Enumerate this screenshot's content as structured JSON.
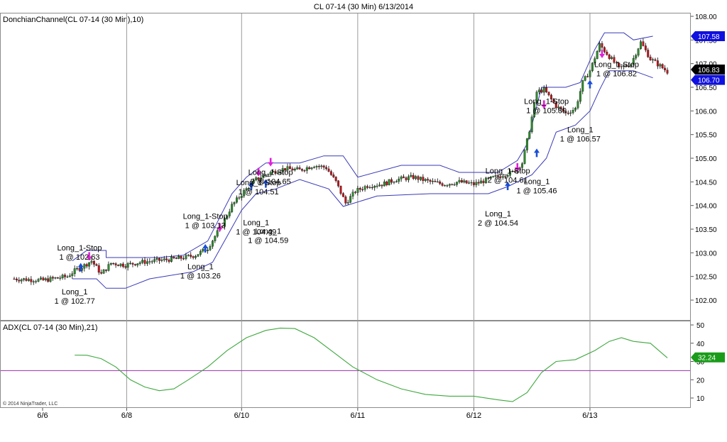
{
  "window": {
    "title": "CL 07-14 (30 Min)  6/13/2014"
  },
  "copyright": "© 2014 NinjaTrader, LLC",
  "colors": {
    "channel": "#3a3ab8",
    "bull_candle": "#2e8b2e",
    "bear_candle": "#c0141c",
    "adx_line": "#3fa83f",
    "adx_threshold": "#9a2fb0",
    "buy_arrow": "#1a4fd6",
    "sell_arrow": "#e020d8",
    "session_line": "#9a9a9a",
    "upper_marker": "#1010e0",
    "price_marker": "#000000",
    "adx_marker": "#1a9c1a"
  },
  "chart_data": [
    {
      "type": "candlestick",
      "title": "DonchianChannel(CL 07-14 (30 Min),10)",
      "ylim": [
        101.7,
        108.05
      ],
      "y_ticks": [
        "102.00",
        "102.50",
        "103.00",
        "103.50",
        "104.00",
        "104.50",
        "105.00",
        "105.50",
        "106.00",
        "106.50",
        "107.00",
        "107.50",
        "108.00"
      ],
      "x_ticks": [
        "6/6",
        "6/8",
        "6/10",
        "6/11",
        "6/12",
        "6/13"
      ],
      "price_path": [
        {
          "x": 0,
          "y": 102.45
        },
        {
          "x": 12,
          "y": 102.42
        },
        {
          "x": 22,
          "y": 102.5
        },
        {
          "x": 25,
          "y": 102.62
        },
        {
          "x": 28,
          "y": 102.7
        },
        {
          "x": 32,
          "y": 102.83
        },
        {
          "x": 36,
          "y": 102.55
        },
        {
          "x": 40,
          "y": 102.78
        },
        {
          "x": 46,
          "y": 102.74
        },
        {
          "x": 52,
          "y": 102.8
        },
        {
          "x": 60,
          "y": 102.84
        },
        {
          "x": 68,
          "y": 102.88
        },
        {
          "x": 75,
          "y": 102.95
        },
        {
          "x": 80,
          "y": 103.1
        },
        {
          "x": 86,
          "y": 103.6
        },
        {
          "x": 90,
          "y": 104.0
        },
        {
          "x": 95,
          "y": 104.3
        },
        {
          "x": 100,
          "y": 104.55
        },
        {
          "x": 106,
          "y": 104.7
        },
        {
          "x": 112,
          "y": 104.78
        },
        {
          "x": 118,
          "y": 104.75
        },
        {
          "x": 124,
          "y": 104.85
        },
        {
          "x": 129,
          "y": 104.8
        },
        {
          "x": 133,
          "y": 104.5
        },
        {
          "x": 137,
          "y": 104.05
        },
        {
          "x": 141,
          "y": 104.3
        },
        {
          "x": 146,
          "y": 104.42
        },
        {
          "x": 152,
          "y": 104.45
        },
        {
          "x": 158,
          "y": 104.55
        },
        {
          "x": 165,
          "y": 104.6
        },
        {
          "x": 172,
          "y": 104.5
        },
        {
          "x": 178,
          "y": 104.45
        },
        {
          "x": 184,
          "y": 104.5
        },
        {
          "x": 190,
          "y": 104.45
        },
        {
          "x": 196,
          "y": 104.55
        },
        {
          "x": 202,
          "y": 104.65
        },
        {
          "x": 206,
          "y": 104.7
        },
        {
          "x": 210,
          "y": 104.9
        },
        {
          "x": 213,
          "y": 105.6
        },
        {
          "x": 216,
          "y": 106.4
        },
        {
          "x": 219,
          "y": 106.45
        },
        {
          "x": 224,
          "y": 106.1
        },
        {
          "x": 228,
          "y": 105.95
        },
        {
          "x": 232,
          "y": 106.05
        },
        {
          "x": 235,
          "y": 106.6
        },
        {
          "x": 238,
          "y": 106.85
        },
        {
          "x": 242,
          "y": 107.4
        },
        {
          "x": 246,
          "y": 107.15
        },
        {
          "x": 250,
          "y": 106.9
        },
        {
          "x": 255,
          "y": 107.0
        },
        {
          "x": 259,
          "y": 107.45
        },
        {
          "x": 263,
          "y": 107.1
        },
        {
          "x": 267,
          "y": 106.95
        },
        {
          "x": 270,
          "y": 106.83
        }
      ],
      "channel_upper": [
        {
          "x": 24,
          "y": 102.83
        },
        {
          "x": 30,
          "y": 103.05
        },
        {
          "x": 38,
          "y": 103.05
        },
        {
          "x": 38,
          "y": 102.9
        },
        {
          "x": 60,
          "y": 102.9
        },
        {
          "x": 70,
          "y": 102.95
        },
        {
          "x": 80,
          "y": 103.25
        },
        {
          "x": 86,
          "y": 103.85
        },
        {
          "x": 90,
          "y": 104.25
        },
        {
          "x": 96,
          "y": 104.6
        },
        {
          "x": 104,
          "y": 104.9
        },
        {
          "x": 118,
          "y": 104.9
        },
        {
          "x": 128,
          "y": 105.05
        },
        {
          "x": 136,
          "y": 105.05
        },
        {
          "x": 142,
          "y": 104.6
        },
        {
          "x": 160,
          "y": 104.85
        },
        {
          "x": 176,
          "y": 104.85
        },
        {
          "x": 184,
          "y": 104.7
        },
        {
          "x": 200,
          "y": 104.7
        },
        {
          "x": 208,
          "y": 104.95
        },
        {
          "x": 212,
          "y": 105.3
        },
        {
          "x": 216,
          "y": 106.1
        },
        {
          "x": 218,
          "y": 106.5
        },
        {
          "x": 228,
          "y": 106.5
        },
        {
          "x": 234,
          "y": 106.6
        },
        {
          "x": 240,
          "y": 107.3
        },
        {
          "x": 244,
          "y": 107.65
        },
        {
          "x": 252,
          "y": 107.65
        },
        {
          "x": 256,
          "y": 107.5
        },
        {
          "x": 264,
          "y": 107.58
        }
      ],
      "channel_lower": [
        {
          "x": 24,
          "y": 102.45
        },
        {
          "x": 34,
          "y": 102.45
        },
        {
          "x": 38,
          "y": 102.25
        },
        {
          "x": 46,
          "y": 102.25
        },
        {
          "x": 56,
          "y": 102.45
        },
        {
          "x": 74,
          "y": 102.6
        },
        {
          "x": 82,
          "y": 102.8
        },
        {
          "x": 88,
          "y": 103.35
        },
        {
          "x": 94,
          "y": 103.9
        },
        {
          "x": 100,
          "y": 104.25
        },
        {
          "x": 108,
          "y": 104.35
        },
        {
          "x": 118,
          "y": 104.55
        },
        {
          "x": 130,
          "y": 104.35
        },
        {
          "x": 136,
          "y": 103.98
        },
        {
          "x": 150,
          "y": 104.2
        },
        {
          "x": 172,
          "y": 104.25
        },
        {
          "x": 196,
          "y": 104.25
        },
        {
          "x": 204,
          "y": 104.4
        },
        {
          "x": 210,
          "y": 104.55
        },
        {
          "x": 214,
          "y": 104.65
        },
        {
          "x": 220,
          "y": 105.0
        },
        {
          "x": 224,
          "y": 105.55
        },
        {
          "x": 232,
          "y": 105.7
        },
        {
          "x": 238,
          "y": 106.0
        },
        {
          "x": 242,
          "y": 106.45
        },
        {
          "x": 246,
          "y": 106.85
        },
        {
          "x": 256,
          "y": 106.85
        },
        {
          "x": 264,
          "y": 106.7
        }
      ],
      "signals": [
        {
          "kind": "buy",
          "x": 27.5,
          "y": 102.68
        },
        {
          "kind": "sell",
          "x": 31,
          "y": 102.94
        },
        {
          "kind": "buy",
          "x": 79,
          "y": 103.08
        },
        {
          "kind": "sell",
          "x": 85,
          "y": 103.55
        },
        {
          "kind": "buy",
          "x": 98,
          "y": 104.4
        },
        {
          "kind": "sell",
          "x": 101,
          "y": 104.72
        },
        {
          "kind": "buy",
          "x": 104,
          "y": 104.45
        },
        {
          "kind": "sell",
          "x": 106,
          "y": 104.93
        },
        {
          "kind": "buy",
          "x": 204,
          "y": 104.4
        },
        {
          "kind": "sell",
          "x": 208,
          "y": 104.82
        },
        {
          "kind": "buy",
          "x": 216,
          "y": 105.1
        },
        {
          "kind": "sell",
          "x": 219,
          "y": 106.15
        },
        {
          "kind": "buy",
          "x": 238,
          "y": 106.55
        },
        {
          "kind": "sell",
          "x": 243,
          "y": 107.22
        }
      ],
      "annotations": [
        {
          "lines": [
            "Long_1-Stop",
            "1 @ 102.63"
          ],
          "x": 27,
          "y": 103.05
        },
        {
          "lines": [
            "Long_1",
            "1 @ 102.77"
          ],
          "x": 25,
          "y": 102.12
        },
        {
          "lines": [
            "Long_1-Stop",
            "1 @ 103.13"
          ],
          "x": 79,
          "y": 103.72
        },
        {
          "lines": [
            "Long_1",
            "1 @ 103.26"
          ],
          "x": 77,
          "y": 102.65
        },
        {
          "lines": [
            "Long_1-Stop",
            "2 @ 104.65"
          ],
          "x": 106,
          "y": 104.65
        },
        {
          "lines": [
            "Long_1-Stop",
            "1 @ 104.51"
          ],
          "x": 101,
          "y": 104.43
        },
        {
          "lines": [
            "Long_1",
            "1 @ 104.49"
          ],
          "x": 100,
          "y": 103.58
        },
        {
          "lines": [
            "Long_1",
            "1 @ 104.59"
          ],
          "x": 105,
          "y": 103.4
        },
        {
          "lines": [
            "Long_1-Stop",
            "2 @ 104.61"
          ],
          "x": 204,
          "y": 104.68
        },
        {
          "lines": [
            "Long_1",
            "1 @ 105.46"
          ],
          "x": 216,
          "y": 104.45
        },
        {
          "lines": [
            "Long_1",
            "2 @ 104.54"
          ],
          "x": 200,
          "y": 103.77
        },
        {
          "lines": [
            "Long_1-Stop",
            "1 @ 105.89"
          ],
          "x": 220,
          "y": 106.15
        },
        {
          "lines": [
            "Long_1",
            "1 @ 106.57"
          ],
          "x": 234,
          "y": 105.55
        },
        {
          "lines": [
            "Long_1-Stop",
            "1 @ 106.82"
          ],
          "x": 249,
          "y": 106.93
        }
      ],
      "price_markers": {
        "upper": "107.58",
        "last": "106.83",
        "lower": "106.70"
      }
    },
    {
      "type": "line",
      "title": "ADX(CL 07-14 (30 Min),21)",
      "ylim": [
        5,
        52
      ],
      "y_ticks": [
        "10",
        "20",
        "30",
        "40",
        "50"
      ],
      "threshold": 25,
      "series": [
        {
          "values": [
            {
              "x": 25,
              "y": 33.5
            },
            {
              "x": 30,
              "y": 33.4
            },
            {
              "x": 36,
              "y": 31.5
            },
            {
              "x": 42,
              "y": 27
            },
            {
              "x": 48,
              "y": 20
            },
            {
              "x": 54,
              "y": 16
            },
            {
              "x": 60,
              "y": 14
            },
            {
              "x": 66,
              "y": 15
            },
            {
              "x": 72,
              "y": 20
            },
            {
              "x": 80,
              "y": 27
            },
            {
              "x": 88,
              "y": 36
            },
            {
              "x": 96,
              "y": 43
            },
            {
              "x": 104,
              "y": 47
            },
            {
              "x": 110,
              "y": 48.3
            },
            {
              "x": 116,
              "y": 48
            },
            {
              "x": 124,
              "y": 43
            },
            {
              "x": 132,
              "y": 35
            },
            {
              "x": 140,
              "y": 27
            },
            {
              "x": 150,
              "y": 20
            },
            {
              "x": 160,
              "y": 15
            },
            {
              "x": 170,
              "y": 12
            },
            {
              "x": 180,
              "y": 11
            },
            {
              "x": 190,
              "y": 11
            },
            {
              "x": 200,
              "y": 9
            },
            {
              "x": 206,
              "y": 8
            },
            {
              "x": 212,
              "y": 13
            },
            {
              "x": 218,
              "y": 24
            },
            {
              "x": 224,
              "y": 30
            },
            {
              "x": 232,
              "y": 31
            },
            {
              "x": 240,
              "y": 36
            },
            {
              "x": 246,
              "y": 41
            },
            {
              "x": 251,
              "y": 43
            },
            {
              "x": 256,
              "y": 41
            },
            {
              "x": 263,
              "y": 40
            },
            {
              "x": 270,
              "y": 32
            }
          ]
        }
      ],
      "current_marker": "32.24"
    }
  ]
}
